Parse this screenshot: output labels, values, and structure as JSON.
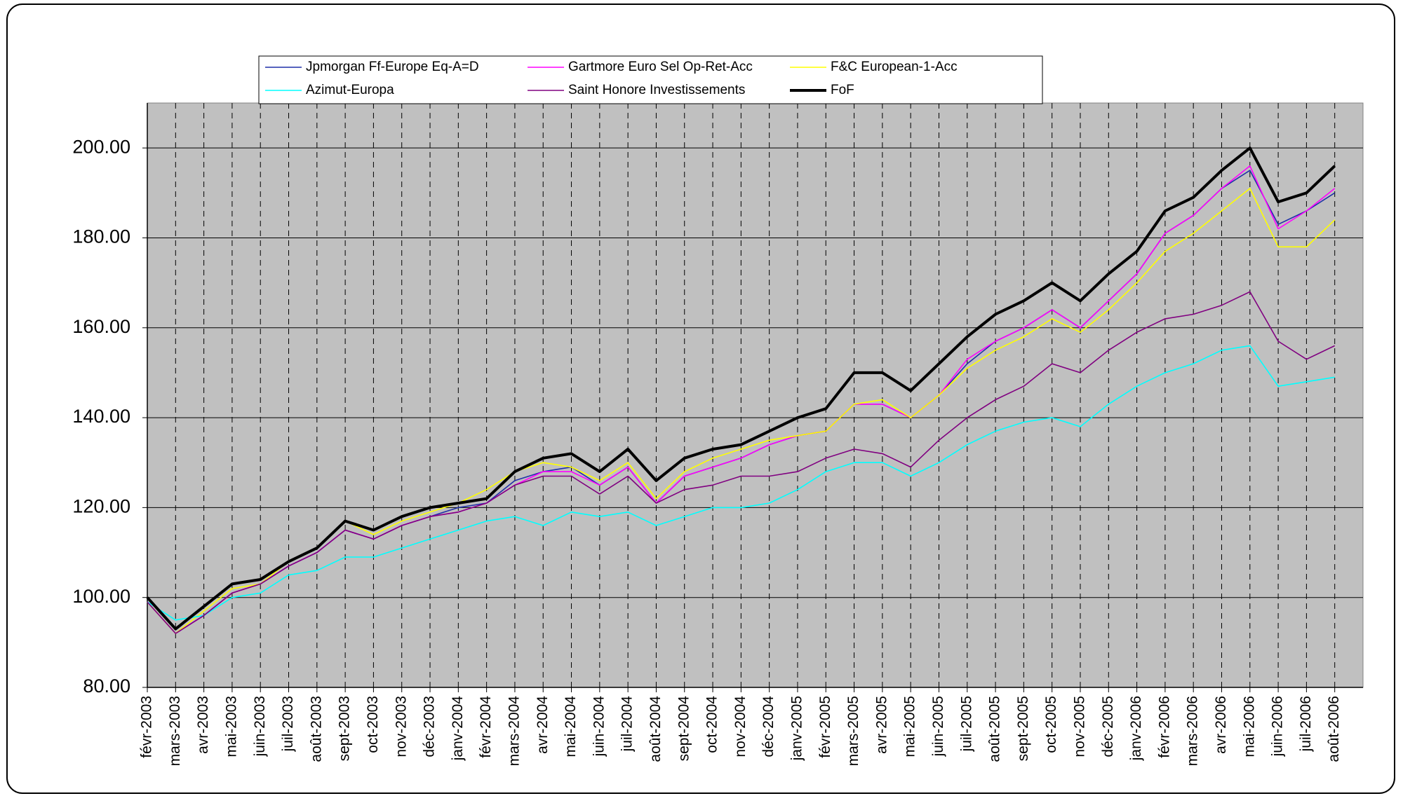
{
  "chart_data": {
    "type": "line",
    "categories": [
      "févr-2003",
      "mars-2003",
      "avr-2003",
      "mai-2003",
      "juin-2003",
      "juil-2003",
      "août-2003",
      "sept-2003",
      "oct-2003",
      "nov-2003",
      "déc-2003",
      "janv-2004",
      "févr-2004",
      "mars-2004",
      "avr-2004",
      "mai-2004",
      "juin-2004",
      "juil-2004",
      "août-2004",
      "sept-2004",
      "oct-2004",
      "nov-2004",
      "déc-2004",
      "janv-2005",
      "févr-2005",
      "mars-2005",
      "avr-2005",
      "mai-2005",
      "juin-2005",
      "juil-2005",
      "août-2005",
      "sept-2005",
      "oct-2005",
      "nov-2005",
      "déc-2005",
      "janv-2006",
      "févr-2006",
      "mars-2006",
      "avr-2006",
      "mai-2006",
      "juin-2006",
      "juil-2006",
      "août-2006"
    ],
    "series": [
      {
        "name": "Jpmorgan Ff-Europe Eq-A=D",
        "color": "#1f2fa8",
        "values": [
          99,
          92,
          96,
          101,
          103,
          107,
          110,
          115,
          113,
          116,
          118,
          120,
          121,
          126,
          128,
          129,
          125,
          129,
          121,
          127,
          129,
          131,
          134,
          136,
          137,
          143,
          143,
          140,
          145,
          152,
          157,
          160,
          164,
          160,
          166,
          172,
          181,
          185,
          191,
          195,
          183,
          186,
          190
        ]
      },
      {
        "name": "Gartmore Euro Sel Op-Ret-Acc",
        "color": "#ff00ff",
        "values": [
          99,
          92,
          96,
          101,
          103,
          107,
          110,
          115,
          113,
          116,
          118,
          119,
          121,
          125,
          128,
          128,
          125,
          129,
          121,
          127,
          129,
          131,
          134,
          136,
          137,
          143,
          143,
          140,
          145,
          153,
          157,
          160,
          164,
          160,
          166,
          172,
          181,
          185,
          191,
          196,
          182,
          186,
          191
        ]
      },
      {
        "name": "F&C European-1-Acc",
        "color": "#ffff00",
        "values": [
          99,
          92,
          97,
          102,
          103,
          108,
          111,
          117,
          114,
          117,
          119,
          121,
          124,
          128,
          130,
          129,
          126,
          130,
          122,
          128,
          131,
          133,
          135,
          136,
          137,
          143,
          144,
          140,
          145,
          151,
          155,
          158,
          162,
          159,
          164,
          170,
          177,
          181,
          186,
          191,
          178,
          178,
          184
        ]
      },
      {
        "name": "Azimut-Europa",
        "color": "#00ffff",
        "values": [
          99,
          95,
          96,
          100,
          101,
          105,
          106,
          109,
          109,
          111,
          113,
          115,
          117,
          118,
          116,
          119,
          118,
          119,
          116,
          118,
          120,
          120,
          121,
          124,
          128,
          130,
          130,
          127,
          130,
          134,
          137,
          139,
          140,
          138,
          143,
          147,
          150,
          152,
          155,
          156,
          147,
          148,
          149
        ]
      },
      {
        "name": "Saint Honore Investissements",
        "color": "#800080",
        "values": [
          99,
          92,
          96,
          101,
          103,
          107,
          110,
          115,
          113,
          116,
          118,
          119,
          121,
          125,
          127,
          127,
          123,
          127,
          121,
          124,
          125,
          127,
          127,
          128,
          131,
          133,
          132,
          129,
          135,
          140,
          144,
          147,
          152,
          150,
          155,
          159,
          162,
          163,
          165,
          168,
          157,
          153,
          156
        ]
      },
      {
        "name": "FoF",
        "color": "#000000",
        "values": [
          100,
          93,
          98,
          103,
          104,
          108,
          111,
          117,
          115,
          118,
          120,
          121,
          122,
          128,
          131,
          132,
          128,
          133,
          126,
          131,
          133,
          134,
          137,
          140,
          142,
          150,
          150,
          146,
          152,
          158,
          163,
          166,
          170,
          166,
          172,
          177,
          186,
          189,
          195,
          200,
          188,
          190,
          196
        ]
      }
    ],
    "ylim": [
      80,
      210
    ],
    "yticks": [
      {
        "value": 80,
        "label": "80.00"
      },
      {
        "value": 100,
        "label": "100.00"
      },
      {
        "value": 120,
        "label": "120.00"
      },
      {
        "value": 140,
        "label": "140.00"
      },
      {
        "value": 160,
        "label": "160.00"
      },
      {
        "value": 180,
        "label": "180.00"
      },
      {
        "value": 200,
        "label": "200.00"
      }
    ],
    "grid": true,
    "legend": "top"
  }
}
